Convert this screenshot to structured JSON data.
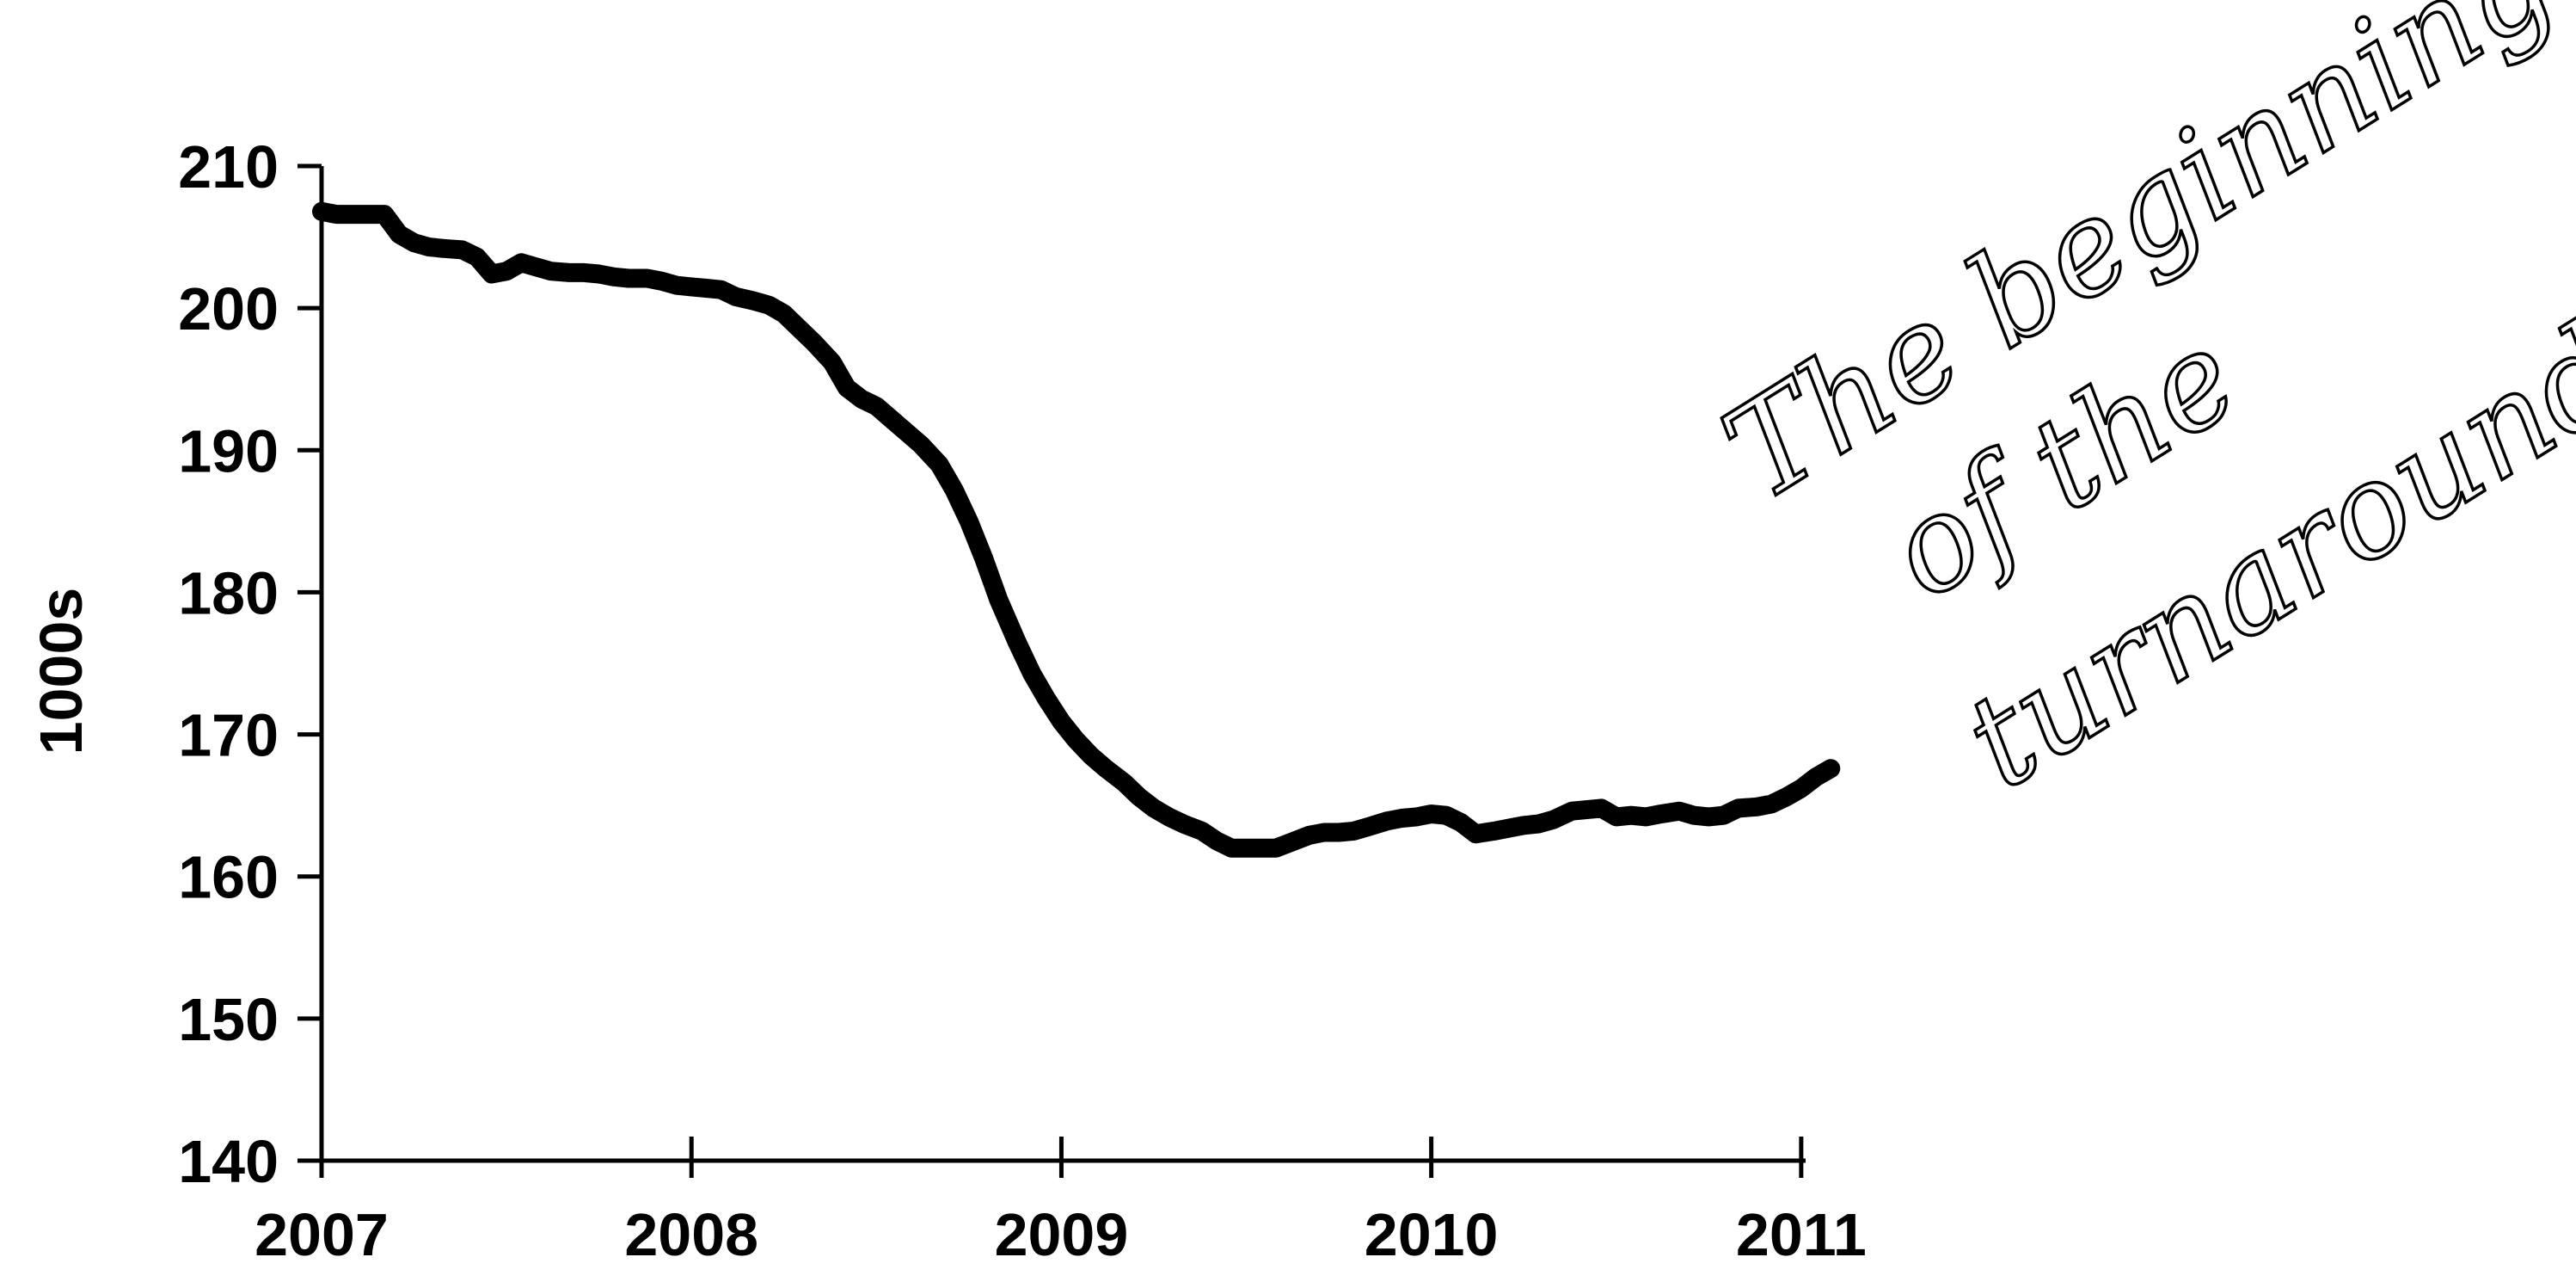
{
  "chart_data": {
    "type": "line",
    "title": "",
    "xlabel": "",
    "ylabel": "1000s",
    "x_ticks": [
      "2007",
      "2008",
      "2009",
      "2010",
      "2011"
    ],
    "y_ticks": [
      140,
      150,
      160,
      170,
      180,
      190,
      200,
      210
    ],
    "xlim": [
      2007,
      2011.17
    ],
    "ylim": [
      140,
      210
    ],
    "grid": false,
    "legend": "none",
    "line_color": "#000000",
    "series": [
      {
        "x": [
          2007.0,
          2007.04,
          2007.08,
          2007.12,
          2007.17,
          2007.21,
          2007.25,
          2007.29,
          2007.33,
          2007.38,
          2007.42,
          2007.46,
          2007.5,
          2007.54,
          2007.58,
          2007.62,
          2007.67,
          2007.71,
          2007.75,
          2007.79,
          2007.83,
          2007.88,
          2007.92,
          2007.96,
          2008.0,
          2008.04,
          2008.08,
          2008.12,
          2008.17,
          2008.21,
          2008.25,
          2008.29,
          2008.33,
          2008.38,
          2008.42,
          2008.46,
          2008.5,
          2008.54,
          2008.58,
          2008.62,
          2008.67,
          2008.71,
          2008.75,
          2008.79,
          2008.83,
          2008.88,
          2008.92,
          2008.96,
          2009.0,
          2009.04,
          2009.08,
          2009.12,
          2009.17,
          2009.21,
          2009.25,
          2009.29,
          2009.33,
          2009.38,
          2009.42,
          2009.46,
          2009.5,
          2009.54,
          2009.58,
          2009.62,
          2009.67,
          2009.71,
          2009.75,
          2009.79,
          2009.83,
          2009.88,
          2009.92,
          2009.96,
          2010.0,
          2010.04,
          2010.08,
          2010.12,
          2010.17,
          2010.21,
          2010.25,
          2010.29,
          2010.33,
          2010.38,
          2010.42,
          2010.46,
          2010.5,
          2010.54,
          2010.58,
          2010.62,
          2010.67,
          2010.71,
          2010.75,
          2010.79,
          2010.83,
          2010.88,
          2010.92,
          2010.96,
          2011.0,
          2011.04,
          2011.08
        ],
        "y": [
          206.8,
          206.6,
          206.6,
          206.6,
          206.6,
          205.2,
          204.6,
          204.3,
          204.2,
          204.1,
          203.6,
          202.4,
          202.6,
          203.2,
          202.9,
          202.6,
          202.5,
          202.5,
          202.4,
          202.2,
          202.1,
          202.1,
          201.9,
          201.6,
          201.5,
          201.4,
          201.3,
          200.8,
          200.5,
          200.2,
          199.6,
          198.6,
          197.6,
          196.2,
          194.4,
          193.6,
          193.1,
          192.2,
          191.3,
          190.4,
          189.0,
          187.2,
          185.0,
          182.4,
          179.5,
          176.5,
          174.3,
          172.5,
          170.9,
          169.6,
          168.5,
          167.6,
          166.6,
          165.6,
          164.8,
          164.2,
          163.7,
          163.2,
          162.5,
          162.0,
          162.0,
          162.0,
          162.0,
          162.4,
          162.9,
          163.1,
          163.1,
          163.2,
          163.5,
          163.9,
          164.1,
          164.2,
          164.4,
          164.3,
          163.8,
          163.0,
          163.2,
          163.4,
          163.6,
          163.7,
          164.0,
          164.6,
          164.7,
          164.8,
          164.2,
          164.3,
          164.2,
          164.4,
          164.6,
          164.3,
          164.2,
          164.3,
          164.8,
          164.9,
          165.1,
          165.6,
          166.2,
          167.0,
          167.6
        ]
      }
    ],
    "annotation": {
      "lines": [
        "The beginning",
        "of the",
        "turnaround."
      ]
    }
  }
}
